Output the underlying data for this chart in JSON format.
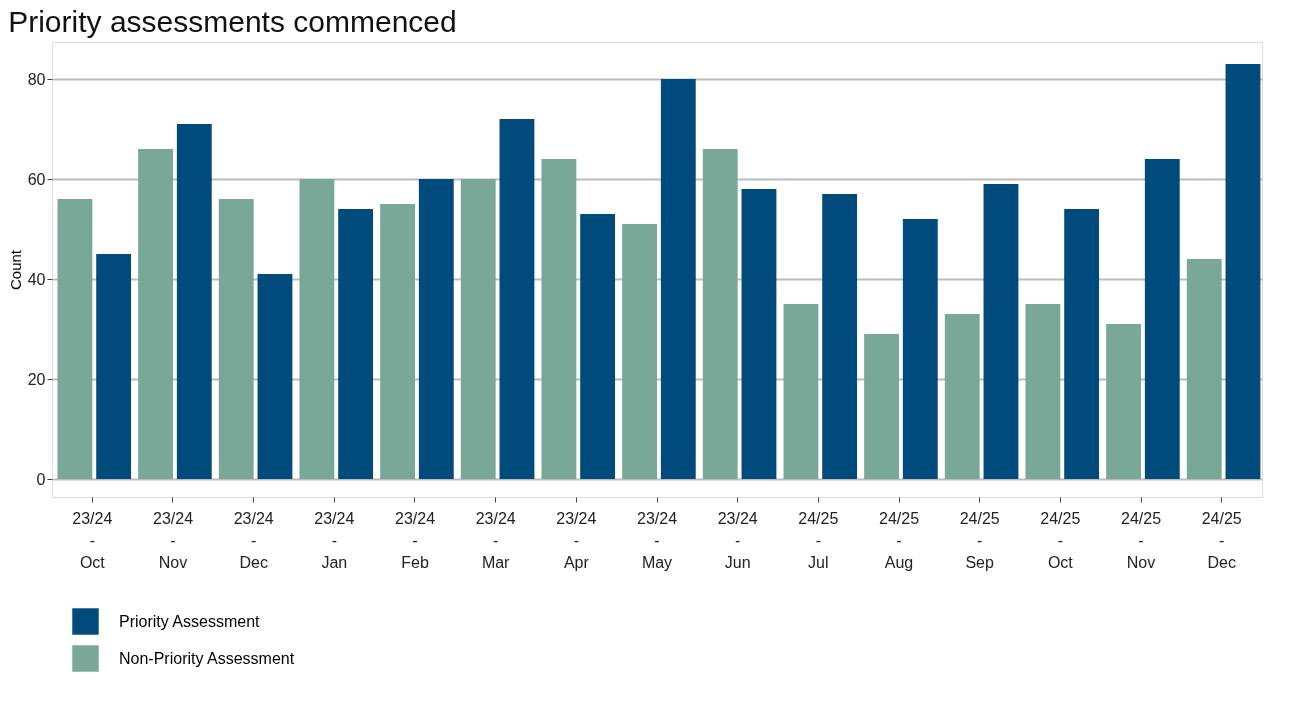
{
  "chart_data": {
    "type": "bar",
    "title": "Priority assessments commenced",
    "ylabel": "Count",
    "categories": [
      "23/24\n-\nOct",
      "23/24\n-\nNov",
      "23/24\n-\nDec",
      "23/24\n-\nJan",
      "23/24\n-\nFeb",
      "23/24\n-\nMar",
      "23/24\n-\nApr",
      "23/24\n-\nMay",
      "23/24\n-\nJun",
      "24/25\n-\nJul",
      "24/25\n-\nAug",
      "24/25\n-\nSep",
      "24/25\n-\nOct",
      "24/25\n-\nNov",
      "24/25\n-\nDec"
    ],
    "series": [
      {
        "name": "Priority Assessment",
        "color": "#004b7c",
        "values": [
          45,
          71,
          41,
          54,
          60,
          72,
          53,
          80,
          58,
          57,
          52,
          59,
          54,
          64,
          83
        ]
      },
      {
        "name": "Non-Priority Assessment",
        "color": "#7aa898",
        "values": [
          56,
          66,
          56,
          60,
          55,
          60,
          64,
          51,
          66,
          35,
          29,
          33,
          35,
          31,
          44
        ]
      }
    ],
    "ylim": [
      -3.6,
      87.4
    ],
    "yticks": [
      0,
      20,
      40,
      60,
      80
    ],
    "grid": "y",
    "legend": "bottom"
  }
}
